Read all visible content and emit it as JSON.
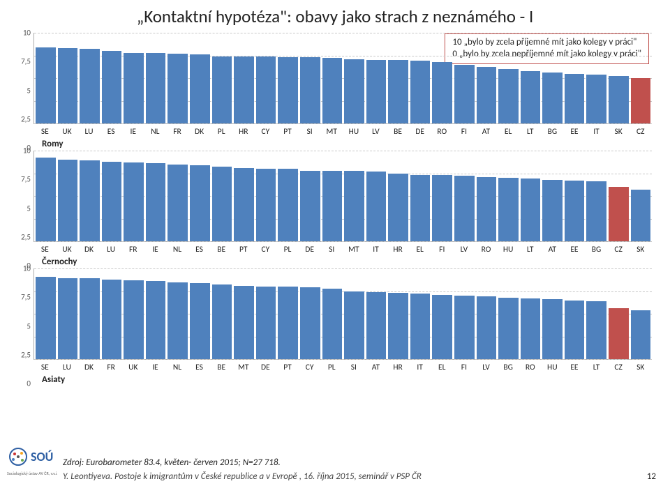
{
  "title": "„Kontaktní hypotéza\": obavy jako strach z neznámého - I",
  "legend": {
    "line1": "10 „bylo by zcela příjemné mít jako kolegy v práci\"",
    "line2": "0 „bylo by zcela nepříjemné mít jako kolegy v práci\""
  },
  "yticks": [
    0,
    2.5,
    5,
    7.5,
    10
  ],
  "ytick_labels": [
    "0",
    "2,5",
    "5",
    "7,5",
    "10"
  ],
  "ylim": 10,
  "colors": {
    "bar": "#4f81bd",
    "highlight": "#c0504d",
    "grid": "#c8c8c8",
    "axis": "#aaaaaa"
  },
  "charts": [
    {
      "series_label": "Romy",
      "highlight": "CZ",
      "categories": [
        "SE",
        "UK",
        "LU",
        "ES",
        "IE",
        "NL",
        "FR",
        "DK",
        "PL",
        "HR",
        "CY",
        "PT",
        "SI",
        "MT",
        "HU",
        "LV",
        "BE",
        "DE",
        "RO",
        "FI",
        "AT",
        "EL",
        "LT",
        "BG",
        "EE",
        "IT",
        "SK",
        "CZ"
      ],
      "values": [
        8.4,
        8.3,
        8.2,
        8.0,
        7.8,
        7.8,
        7.7,
        7.6,
        7.4,
        7.4,
        7.4,
        7.3,
        7.3,
        7.2,
        7.1,
        7.0,
        7.0,
        6.9,
        6.8,
        6.5,
        6.2,
        6.0,
        5.8,
        5.6,
        5.5,
        5.4,
        5.2,
        5.0
      ]
    },
    {
      "series_label": "Černochy",
      "highlight": "CZ",
      "categories": [
        "SE",
        "UK",
        "DK",
        "LU",
        "FR",
        "IE",
        "NL",
        "ES",
        "BE",
        "PT",
        "CY",
        "PL",
        "DE",
        "SI",
        "MT",
        "IT",
        "HR",
        "EL",
        "FI",
        "LV",
        "RO",
        "HU",
        "LT",
        "AT",
        "EE",
        "BG",
        "CZ",
        "SK"
      ],
      "values": [
        9.2,
        9.0,
        8.9,
        8.8,
        8.7,
        8.6,
        8.5,
        8.4,
        8.2,
        8.1,
        8.0,
        8.0,
        7.8,
        7.8,
        7.8,
        7.7,
        7.5,
        7.3,
        7.3,
        7.2,
        7.1,
        7.0,
        6.9,
        6.8,
        6.7,
        6.6,
        6.0,
        5.7
      ]
    },
    {
      "series_label": "Asiaty",
      "highlight": "CZ",
      "categories": [
        "SE",
        "LU",
        "DK",
        "FR",
        "UK",
        "IE",
        "NL",
        "ES",
        "BE",
        "MT",
        "DE",
        "PT",
        "CY",
        "PL",
        "SI",
        "AT",
        "HR",
        "IT",
        "EL",
        "FI",
        "LV",
        "BG",
        "RO",
        "HU",
        "EE",
        "LT",
        "CZ",
        "SK"
      ],
      "values": [
        9.1,
        8.9,
        8.9,
        8.8,
        8.7,
        8.6,
        8.5,
        8.4,
        8.2,
        8.1,
        8.0,
        8.0,
        7.9,
        7.8,
        7.5,
        7.4,
        7.3,
        7.2,
        7.1,
        7.0,
        6.9,
        6.8,
        6.7,
        6.6,
        6.5,
        6.4,
        5.6,
        5.4
      ]
    }
  ],
  "citation": "Zdroj: Eurobarometer 83.4, květen- červen 2015; N=27 718.",
  "footer": "Y. Leontiyeva. Postoje k imigrantům v České republice a v Evropě , 16. října 2015, seminář v PSP ČR",
  "pagenum": "12",
  "logo_text1": "SOÚ",
  "logo_text2": "Sociologický ústav AV ČR, v.v.i."
}
